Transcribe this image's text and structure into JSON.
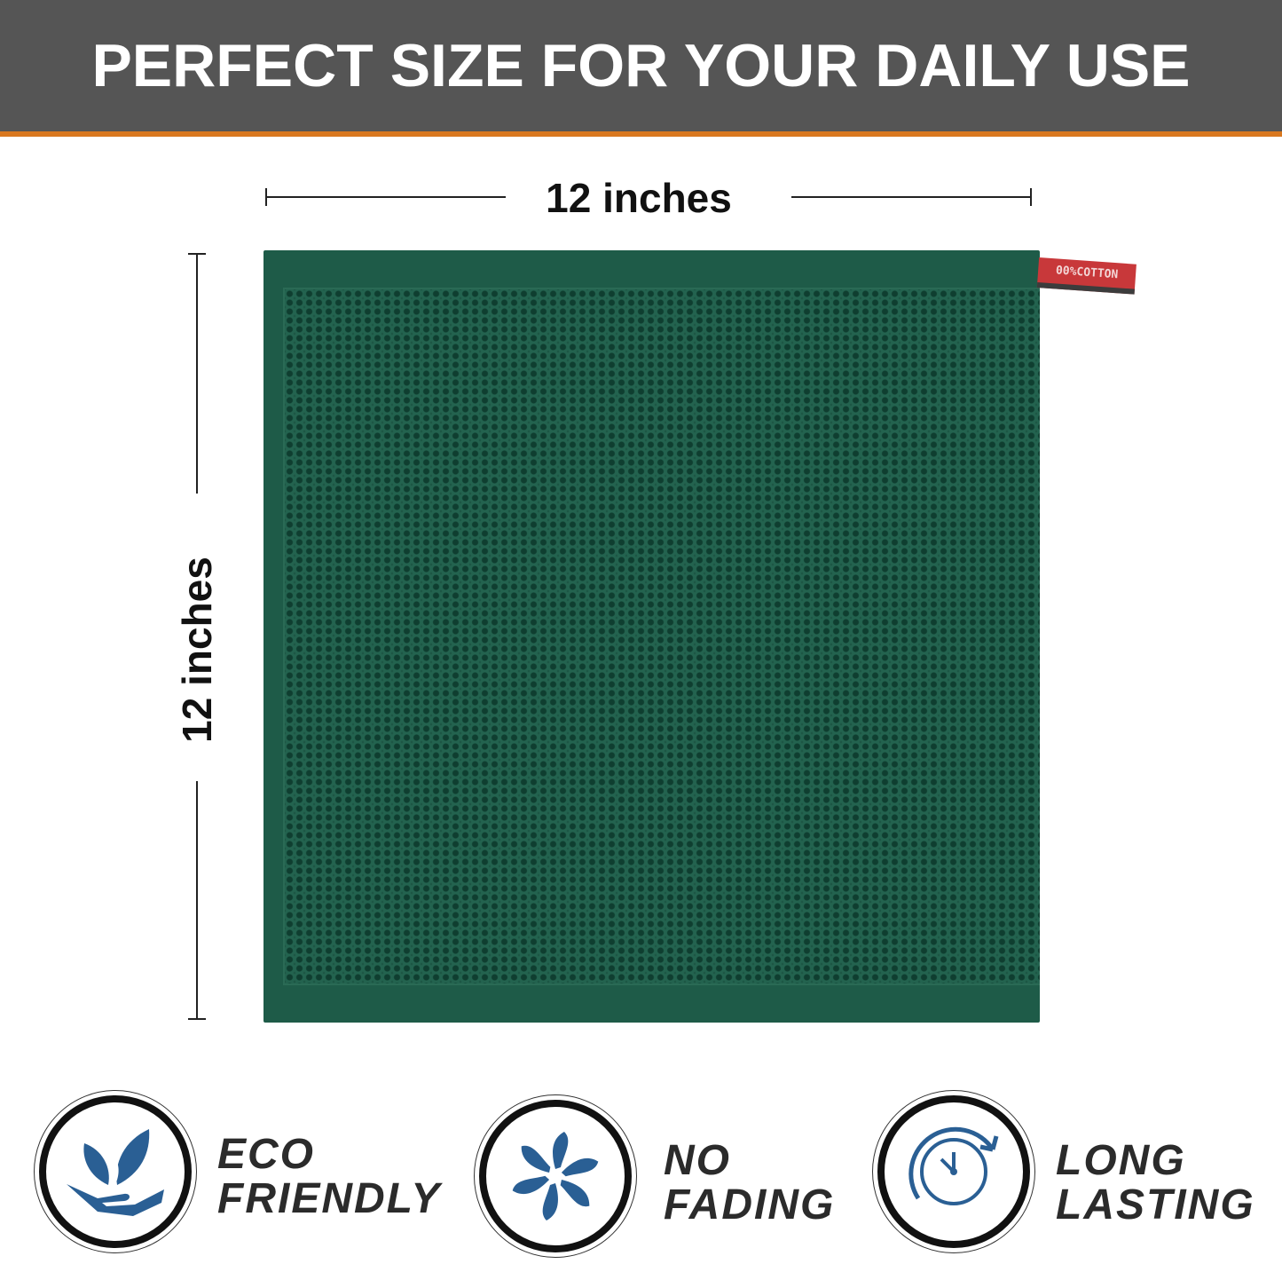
{
  "header": {
    "title": "PERFECT SIZE FOR YOUR DAILY USE"
  },
  "dimensions": {
    "width_label": "12 inches",
    "height_label": "12 inches"
  },
  "product": {
    "tag_text": "00%COTTON",
    "color": "#1e5b48"
  },
  "features": [
    {
      "line1": "ECO",
      "line2": "FRIENDLY",
      "icon": "leaf-hand-icon"
    },
    {
      "line1": "NO",
      "line2": "FADING",
      "icon": "pinwheel-icon"
    },
    {
      "line1": "LONG",
      "line2": "LASTING",
      "icon": "clock-icon"
    }
  ],
  "colors": {
    "header_bg": "#555555",
    "accent": "#d9781f",
    "icon_blue": "#2a5f94"
  }
}
